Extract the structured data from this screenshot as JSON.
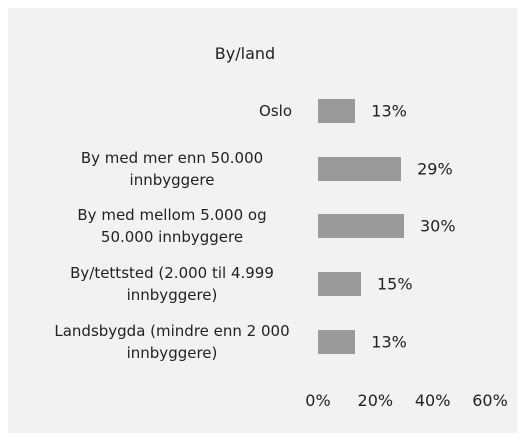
{
  "chart_data": {
    "type": "bar",
    "orientation": "horizontal",
    "title": "By/land",
    "categories": [
      "Oslo",
      "By med mer enn 50.000 innbyggere",
      "By med mellom 5.000 og 50.000 innbyggere",
      "By/tettsted (2.000 til 4.999 innbyggere)",
      "Landsbygda (mindre enn 2 000 innbyggere)"
    ],
    "values": [
      13,
      29,
      30,
      15,
      13
    ],
    "value_labels": [
      "13%",
      "29%",
      "30%",
      "15%",
      "13%"
    ],
    "color": "#9a9a9a",
    "xlim": [
      0,
      60
    ],
    "xticks": [
      {
        "value": 0,
        "label": "0%"
      },
      {
        "value": 20,
        "label": "20%"
      },
      {
        "value": 40,
        "label": "40%"
      },
      {
        "value": 60,
        "label": "60%"
      }
    ],
    "grid": false
  }
}
